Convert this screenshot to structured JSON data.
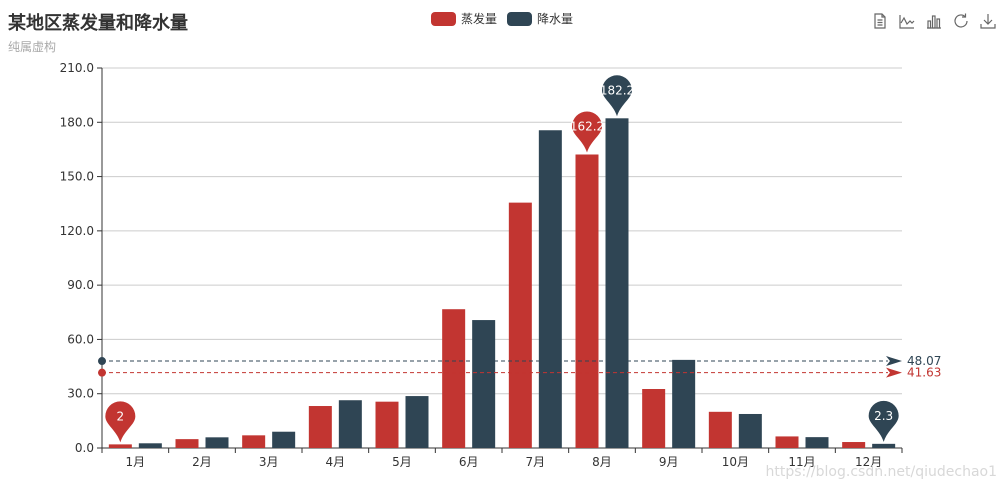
{
  "title": "某地区蒸发量和降水量",
  "subtitle": "纯属虚构",
  "watermark": "https://blog.csdn.net/qiudechao1",
  "toolbox": {
    "icons": [
      "data-view-icon",
      "line-chart-icon",
      "bar-chart-icon",
      "restore-icon",
      "save-image-icon"
    ]
  },
  "colors": {
    "series1": "#c23531",
    "series2": "#2f4554",
    "grid": "#cccccc",
    "axis": "#333333",
    "tick_text": "#333333"
  },
  "chart_data": {
    "type": "bar",
    "title": "某地区蒸发量和降水量",
    "subtitle": "纯属虚构",
    "categories": [
      "1月",
      "2月",
      "3月",
      "4月",
      "5月",
      "6月",
      "7月",
      "8月",
      "9月",
      "10月",
      "11月",
      "12月"
    ],
    "series": [
      {
        "name": "蒸发量",
        "color": "#c23531",
        "values": [
          2.0,
          4.9,
          7.0,
          23.2,
          25.6,
          76.7,
          135.6,
          162.2,
          32.6,
          20.0,
          6.4,
          3.3
        ]
      },
      {
        "name": "降水量",
        "color": "#2f4554",
        "values": [
          2.6,
          5.9,
          9.0,
          26.4,
          28.7,
          70.7,
          175.6,
          182.2,
          48.7,
          18.8,
          6.0,
          2.3
        ]
      }
    ],
    "ylim": [
      0,
      210
    ],
    "yticks": [
      "0.0",
      "30.0",
      "60.0",
      "90.0",
      "120.0",
      "150.0",
      "180.0",
      "210.0"
    ],
    "ytick_values": [
      0,
      30,
      60,
      90,
      120,
      150,
      180,
      210
    ],
    "grid": true,
    "legend": "top-center",
    "mark_points": [
      {
        "series": 0,
        "category": "1月",
        "value": 2,
        "label": "2"
      },
      {
        "series": 0,
        "category": "8月",
        "value": 162.2,
        "label": "162.2"
      },
      {
        "series": 1,
        "category": "8月",
        "value": 182.2,
        "label": "182.2"
      },
      {
        "series": 1,
        "category": "12月",
        "value": 2.3,
        "label": "2.3"
      }
    ],
    "mark_lines": [
      {
        "series": 0,
        "value": 41.63,
        "label": "41.63"
      },
      {
        "series": 1,
        "value": 48.07,
        "label": "48.07"
      }
    ]
  }
}
